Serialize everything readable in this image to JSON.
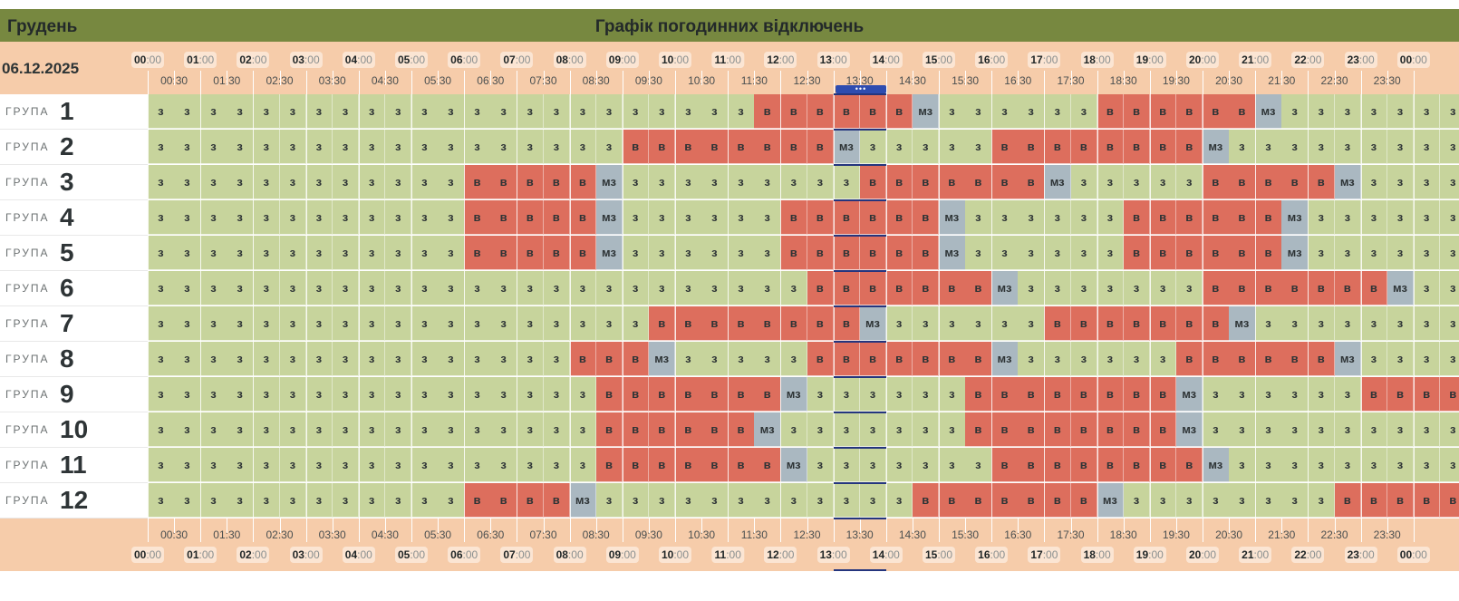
{
  "header": {
    "month": "Грудень",
    "title": "Графік погодинних відключень"
  },
  "date": "06.12.2025",
  "hours": [
    "00",
    "01",
    "02",
    "03",
    "04",
    "05",
    "06",
    "07",
    "08",
    "09",
    "10",
    "11",
    "12",
    "13",
    "14",
    "15",
    "16",
    "17",
    "18",
    "19",
    "20",
    "21",
    "22",
    "23",
    "00"
  ],
  "minute_suffix": ":00",
  "half_hours": [
    "00:30",
    "01:30",
    "02:30",
    "03:30",
    "04:30",
    "05:30",
    "06:30",
    "07:30",
    "08:30",
    "09:30",
    "10:30",
    "11:30",
    "12:30",
    "13:30",
    "14:30",
    "15:30",
    "16:30",
    "17:30",
    "18:30",
    "19:30",
    "20:30",
    "21:30",
    "22:30",
    "23:30"
  ],
  "group_word": "ГРУПА",
  "now_marker": "•••",
  "current_slot_range": [
    26,
    27
  ],
  "legend": {
    "з": "on",
    "в": "off",
    "мз": "maybe"
  },
  "colors": {
    "on": "#c7d49c",
    "off": "#dd6e5d",
    "maybe": "#aab8c1",
    "header": "#778840",
    "time_band": "#f6ccaa",
    "now": "#24357e"
  },
  "groups": [
    {
      "number": "1",
      "slots": [
        "з",
        "з",
        "з",
        "з",
        "з",
        "з",
        "з",
        "з",
        "з",
        "з",
        "з",
        "з",
        "з",
        "з",
        "з",
        "з",
        "з",
        "з",
        "з",
        "з",
        "з",
        "з",
        "з",
        "в",
        "в",
        "в",
        "в",
        "в",
        "в",
        "мз",
        "з",
        "з",
        "з",
        "з",
        "з",
        "з",
        "в",
        "в",
        "в",
        "в",
        "в",
        "в",
        "мз",
        "з",
        "з",
        "з",
        "з",
        "з",
        "з",
        "з"
      ]
    },
    {
      "number": "2",
      "slots": [
        "з",
        "з",
        "з",
        "з",
        "з",
        "з",
        "з",
        "з",
        "з",
        "з",
        "з",
        "з",
        "з",
        "з",
        "з",
        "з",
        "з",
        "з",
        "в",
        "в",
        "в",
        "в",
        "в",
        "в",
        "в",
        "в",
        "мз",
        "з",
        "з",
        "з",
        "з",
        "з",
        "в",
        "в",
        "в",
        "в",
        "в",
        "в",
        "в",
        "в",
        "мз",
        "з",
        "з",
        "з",
        "з",
        "з",
        "з",
        "з",
        "з",
        "з"
      ]
    },
    {
      "number": "3",
      "slots": [
        "з",
        "з",
        "з",
        "з",
        "з",
        "з",
        "з",
        "з",
        "з",
        "з",
        "з",
        "з",
        "в",
        "в",
        "в",
        "в",
        "в",
        "мз",
        "з",
        "з",
        "з",
        "з",
        "з",
        "з",
        "з",
        "з",
        "з",
        "в",
        "в",
        "в",
        "в",
        "в",
        "в",
        "в",
        "мз",
        "з",
        "з",
        "з",
        "з",
        "з",
        "в",
        "в",
        "в",
        "в",
        "в",
        "мз",
        "з",
        "з",
        "з",
        "з"
      ]
    },
    {
      "number": "4",
      "slots": [
        "з",
        "з",
        "з",
        "з",
        "з",
        "з",
        "з",
        "з",
        "з",
        "з",
        "з",
        "з",
        "в",
        "в",
        "в",
        "в",
        "в",
        "мз",
        "з",
        "з",
        "з",
        "з",
        "з",
        "з",
        "в",
        "в",
        "в",
        "в",
        "в",
        "в",
        "мз",
        "з",
        "з",
        "з",
        "з",
        "з",
        "з",
        "в",
        "в",
        "в",
        "в",
        "в",
        "в",
        "мз",
        "з",
        "з",
        "з",
        "з",
        "з",
        "з"
      ]
    },
    {
      "number": "5",
      "slots": [
        "з",
        "з",
        "з",
        "з",
        "з",
        "з",
        "з",
        "з",
        "з",
        "з",
        "з",
        "з",
        "в",
        "в",
        "в",
        "в",
        "в",
        "мз",
        "з",
        "з",
        "з",
        "з",
        "з",
        "з",
        "в",
        "в",
        "в",
        "в",
        "в",
        "в",
        "мз",
        "з",
        "з",
        "з",
        "з",
        "з",
        "з",
        "в",
        "в",
        "в",
        "в",
        "в",
        "в",
        "мз",
        "з",
        "з",
        "з",
        "з",
        "з",
        "з"
      ]
    },
    {
      "number": "6",
      "slots": [
        "з",
        "з",
        "з",
        "з",
        "з",
        "з",
        "з",
        "з",
        "з",
        "з",
        "з",
        "з",
        "з",
        "з",
        "з",
        "з",
        "з",
        "з",
        "з",
        "з",
        "з",
        "з",
        "з",
        "з",
        "з",
        "в",
        "в",
        "в",
        "в",
        "в",
        "в",
        "в",
        "мз",
        "з",
        "з",
        "з",
        "з",
        "з",
        "з",
        "з",
        "в",
        "в",
        "в",
        "в",
        "в",
        "в",
        "в",
        "мз",
        "з",
        "з"
      ]
    },
    {
      "number": "7",
      "slots": [
        "з",
        "з",
        "з",
        "з",
        "з",
        "з",
        "з",
        "з",
        "з",
        "з",
        "з",
        "з",
        "з",
        "з",
        "з",
        "з",
        "з",
        "з",
        "з",
        "в",
        "в",
        "в",
        "в",
        "в",
        "в",
        "в",
        "в",
        "мз",
        "з",
        "з",
        "з",
        "з",
        "з",
        "з",
        "в",
        "в",
        "в",
        "в",
        "в",
        "в",
        "в",
        "мз",
        "з",
        "з",
        "з",
        "з",
        "з",
        "з",
        "з",
        "з"
      ]
    },
    {
      "number": "8",
      "slots": [
        "з",
        "з",
        "з",
        "з",
        "з",
        "з",
        "з",
        "з",
        "з",
        "з",
        "з",
        "з",
        "з",
        "з",
        "з",
        "з",
        "в",
        "в",
        "в",
        "мз",
        "з",
        "з",
        "з",
        "з",
        "з",
        "в",
        "в",
        "в",
        "в",
        "в",
        "в",
        "в",
        "мз",
        "з",
        "з",
        "з",
        "з",
        "з",
        "з",
        "в",
        "в",
        "в",
        "в",
        "в",
        "в",
        "мз",
        "з",
        "з",
        "з",
        "з"
      ]
    },
    {
      "number": "9",
      "slots": [
        "з",
        "з",
        "з",
        "з",
        "з",
        "з",
        "з",
        "з",
        "з",
        "з",
        "з",
        "з",
        "з",
        "з",
        "з",
        "з",
        "з",
        "в",
        "в",
        "в",
        "в",
        "в",
        "в",
        "в",
        "мз",
        "з",
        "з",
        "з",
        "з",
        "з",
        "з",
        "в",
        "в",
        "в",
        "в",
        "в",
        "в",
        "в",
        "в",
        "мз",
        "з",
        "з",
        "з",
        "з",
        "з",
        "з",
        "в",
        "в",
        "в",
        "в"
      ]
    },
    {
      "number": "10",
      "slots": [
        "з",
        "з",
        "з",
        "з",
        "з",
        "з",
        "з",
        "з",
        "з",
        "з",
        "з",
        "з",
        "з",
        "з",
        "з",
        "з",
        "з",
        "в",
        "в",
        "в",
        "в",
        "в",
        "в",
        "мз",
        "з",
        "з",
        "з",
        "з",
        "з",
        "з",
        "з",
        "в",
        "в",
        "в",
        "в",
        "в",
        "в",
        "в",
        "в",
        "мз",
        "з",
        "з",
        "з",
        "з",
        "з",
        "з",
        "з",
        "з",
        "з",
        "з"
      ]
    },
    {
      "number": "11",
      "slots": [
        "з",
        "з",
        "з",
        "з",
        "з",
        "з",
        "з",
        "з",
        "з",
        "з",
        "з",
        "з",
        "з",
        "з",
        "з",
        "з",
        "з",
        "в",
        "в",
        "в",
        "в",
        "в",
        "в",
        "в",
        "мз",
        "з",
        "з",
        "з",
        "з",
        "з",
        "з",
        "з",
        "в",
        "в",
        "в",
        "в",
        "в",
        "в",
        "в",
        "в",
        "мз",
        "з",
        "з",
        "з",
        "з",
        "з",
        "з",
        "з",
        "з",
        "з"
      ]
    },
    {
      "number": "12",
      "slots": [
        "з",
        "з",
        "з",
        "з",
        "з",
        "з",
        "з",
        "з",
        "з",
        "з",
        "з",
        "з",
        "в",
        "в",
        "в",
        "в",
        "мз",
        "з",
        "з",
        "з",
        "з",
        "з",
        "з",
        "з",
        "з",
        "з",
        "з",
        "з",
        "з",
        "в",
        "в",
        "в",
        "в",
        "в",
        "в",
        "в",
        "мз",
        "з",
        "з",
        "з",
        "з",
        "з",
        "з",
        "з",
        "з",
        "в",
        "в",
        "в",
        "в",
        "в"
      ]
    }
  ]
}
